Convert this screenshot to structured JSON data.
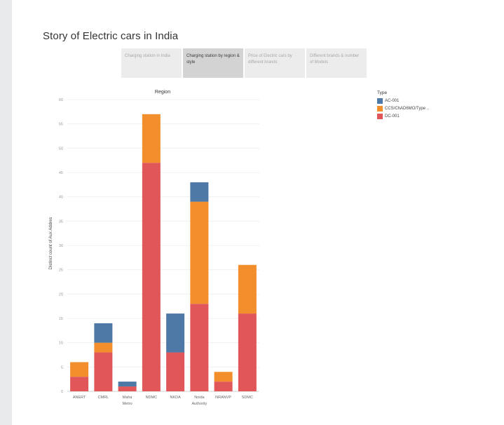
{
  "page": {
    "title": "Story of Electric cars in India"
  },
  "tabs": [
    {
      "label": "Charging station in India",
      "active": false
    },
    {
      "label": "Charging station by region & style",
      "active": true
    },
    {
      "label": "Price of Electric cars by different brands",
      "active": false
    },
    {
      "label": "Different brands & number of Models",
      "active": false
    }
  ],
  "legend": {
    "title": "Type",
    "items": [
      {
        "label": "AC-001",
        "color": "#4e79a7"
      },
      {
        "label": "CCS/ChAD6MO/Type ..",
        "color": "#f28e2b"
      },
      {
        "label": "DC-001",
        "color": "#e15759"
      }
    ]
  },
  "chart_data": {
    "type": "bar",
    "stacked": true,
    "title": "",
    "column_header": "Region",
    "xlabel": "",
    "ylabel": "Distinct count of Aux Addres",
    "ylim": [
      0,
      60
    ],
    "yticks": [
      0,
      5,
      10,
      15,
      20,
      25,
      30,
      35,
      40,
      45,
      50,
      55,
      60
    ],
    "grid": true,
    "legend_position": "top-right",
    "categories": [
      "ANERT",
      "CMRL",
      "Maha Metro",
      "NDMC",
      "NKDA",
      "Noida Authority",
      "NRANVP",
      "SDMC"
    ],
    "series": [
      {
        "name": "DC-001",
        "color": "#e15759",
        "values": [
          3,
          8,
          1,
          47,
          8,
          18,
          2,
          16
        ]
      },
      {
        "name": "CCS/ChAD6MO/Type ..",
        "color": "#f28e2b",
        "values": [
          3,
          2,
          0,
          10,
          0,
          21,
          2,
          10
        ]
      },
      {
        "name": "AC-001",
        "color": "#4e79a7",
        "values": [
          0,
          4,
          1,
          0,
          8,
          4,
          0,
          0
        ]
      }
    ]
  }
}
